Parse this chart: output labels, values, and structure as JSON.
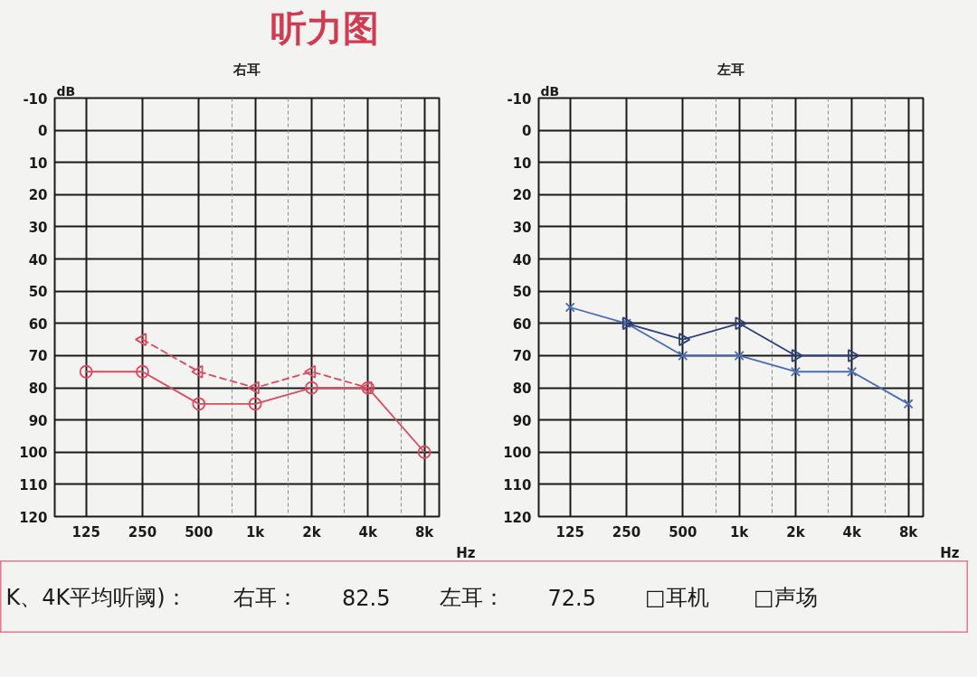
{
  "chart_data": [
    {
      "type": "other",
      "title": "听力图"
    },
    {
      "type": "line",
      "title": "右耳",
      "xlabel": "Hz",
      "ylabel": "dB",
      "log": "x",
      "x": [
        125,
        250,
        500,
        1000,
        2000,
        4000,
        8000
      ],
      "xlim": [
        85,
        9600
      ],
      "xticks": [
        125,
        250,
        500,
        {
          "value": 750,
          "label": null
        },
        {
          "value": 1000,
          "label": "1k"
        },
        {
          "value": 1500,
          "label": null
        },
        {
          "value": 2000,
          "label": "2k"
        },
        {
          "value": 3000,
          "label": null
        },
        {
          "value": 4000,
          "label": "4k"
        },
        {
          "value": 6000,
          "label": null
        },
        {
          "value": 8000,
          "label": "8k"
        }
      ],
      "ylim": [
        120,
        -10
      ],
      "yticks": [
        -10,
        0,
        10,
        20,
        30,
        40,
        50,
        60,
        70,
        80,
        90,
        100,
        110,
        120
      ],
      "grid": true,
      "series": [
        {
          "color": "#dc4a60",
          "marker": "circle",
          "line_style": "solid",
          "values": [
            75,
            75,
            85,
            85,
            80,
            80,
            100
          ]
        },
        {
          "color": "#dc4a60",
          "marker": "triangle",
          "line_style": "dashed",
          "values": [
            null,
            65,
            75,
            80,
            75,
            80,
            null
          ]
        }
      ]
    },
    {
      "type": "line",
      "title": "左耳",
      "xlabel": "Hz",
      "ylabel": "dB",
      "log": "x",
      "x": [
        125,
        250,
        500,
        1000,
        2000,
        4000,
        8000
      ],
      "xlim": [
        85,
        9600
      ],
      "xticks": [
        125,
        250,
        500,
        {
          "value": 750,
          "label": null
        },
        {
          "value": 1000,
          "label": "1k"
        },
        {
          "value": 1500,
          "label": null
        },
        {
          "value": 2000,
          "label": "2k"
        },
        {
          "value": 3000,
          "label": null
        },
        {
          "value": 4000,
          "label": "4k"
        },
        {
          "value": 6000,
          "label": null
        },
        {
          "value": 8000,
          "label": "8k"
        }
      ],
      "ylim": [
        120,
        -10
      ],
      "yticks": [
        -10,
        0,
        10,
        20,
        30,
        40,
        50,
        60,
        70,
        80,
        90,
        100,
        110,
        120
      ],
      "grid": true,
      "series": [
        {
          "color": "#4a6cb3",
          "marker": "cross",
          "line_style": "solid",
          "values": [
            55,
            60,
            70,
            70,
            75,
            75,
            85
          ]
        },
        {
          "color": "#2c3f78",
          "marker": "triangle",
          "line_style": "solid",
          "values": [
            null,
            60,
            65,
            60,
            70,
            70,
            null
          ]
        }
      ]
    },
    {
      "type": "other",
      "annotations": [
        "K、4K平均听阈)：",
        "右耳：",
        "82.5",
        "左耳：",
        "72.5",
        "□耳机",
        "□声场"
      ]
    }
  ]
}
